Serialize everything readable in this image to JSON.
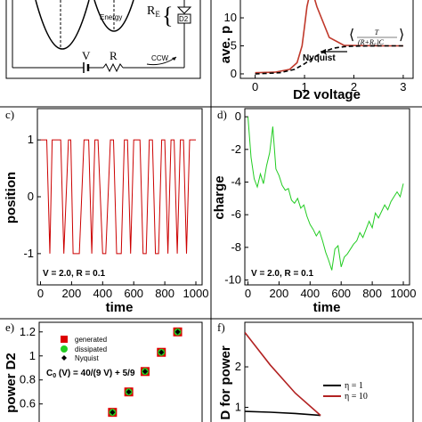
{
  "schematic": {
    "energy_label": "Energy",
    "re_label": "R",
    "re_sub": "E",
    "d2_label": "D2",
    "v_label": "V",
    "r_label": "R",
    "ccw_label": "CCW"
  },
  "chart_data": [
    {
      "panel": "b",
      "type": "line",
      "xlabel": "D2 voltage",
      "ylabel": "ave. p",
      "xlim": [
        -0.3,
        3.2
      ],
      "ylim": [
        -0.8,
        13.5
      ],
      "xticks": [
        "0",
        "1",
        "2",
        "3"
      ],
      "yticks": [
        "0",
        "5",
        "10"
      ],
      "series": [
        {
          "name": "",
          "color": "#c0392b",
          "style": "solid",
          "x": [
            0.0,
            0.4,
            0.7,
            0.85,
            0.95,
            1.0,
            1.05,
            1.1,
            1.15,
            1.25,
            1.5,
            1.8,
            2.5,
            3.0
          ],
          "y": [
            0.2,
            0.3,
            0.8,
            2.0,
            5.0,
            8.5,
            12.0,
            14.0,
            15.0,
            12.0,
            6.5,
            5.1,
            5.0,
            5.0
          ]
        },
        {
          "name": "",
          "color": "#000000",
          "style": "dashed",
          "x": [
            0.0,
            0.5,
            0.8,
            1.0,
            1.2,
            1.4,
            1.6,
            1.8,
            2.0,
            2.5,
            3.0
          ],
          "y": [
            0.0,
            0.2,
            0.8,
            1.8,
            3.0,
            4.0,
            4.6,
            4.85,
            4.95,
            5.0,
            5.0
          ]
        }
      ],
      "annotations": {
        "nyquist": "Nyquist",
        "formula_num": "T",
        "formula_den": "(R+R",
        "formula_den_sub": "E",
        "formula_den_end": ")C"
      }
    },
    {
      "panel": "c",
      "type": "line",
      "panel_label": "c)",
      "xlabel": "time",
      "ylabel": "position",
      "xlim": [
        -20,
        1040
      ],
      "ylim": [
        -1.55,
        1.55
      ],
      "xticks": [
        "0",
        "200",
        "400",
        "600",
        "800",
        "1000"
      ],
      "yticks": [
        "-1",
        "0",
        "1"
      ],
      "annotation": "V = 2.0, R = 0.1",
      "series": [
        {
          "name": "",
          "color": "#cc0000",
          "x": [
            0,
            40,
            60,
            75,
            100,
            130,
            150,
            180,
            195,
            210,
            230,
            250,
            280,
            310,
            330,
            350,
            370,
            400,
            420,
            450,
            470,
            490,
            520,
            540,
            560,
            580,
            600,
            620,
            640,
            660,
            680,
            700,
            720,
            740,
            760,
            780,
            800,
            820,
            840,
            860,
            880,
            900,
            920,
            940,
            960,
            980,
            1000
          ],
          "y": [
            1,
            1,
            -1,
            1,
            1,
            1,
            -1,
            1,
            1,
            -1,
            -1,
            -1,
            1,
            1,
            -1,
            1,
            1,
            -1,
            -1,
            1,
            1,
            -1,
            -1,
            1,
            1,
            -1,
            1,
            1,
            1,
            -1,
            -1,
            1,
            1,
            -1,
            -1,
            1,
            1,
            -1,
            1,
            1,
            -1,
            1,
            1,
            -1,
            1,
            1,
            1
          ]
        }
      ]
    },
    {
      "panel": "d",
      "type": "line",
      "panel_label": "d)",
      "xlabel": "time",
      "ylabel": "charge",
      "xlim": [
        -20,
        1040
      ],
      "ylim": [
        -10.3,
        0.5
      ],
      "xticks": [
        "0",
        "200",
        "400",
        "600",
        "800",
        "1000"
      ],
      "yticks": [
        "-10",
        "-8",
        "-6",
        "-4",
        "-2",
        "0"
      ],
      "annotation": "V = 2.0, R = 0.1",
      "series": [
        {
          "name": "",
          "color": "#22cc22",
          "x": [
            0,
            20,
            40,
            60,
            80,
            100,
            120,
            140,
            160,
            180,
            200,
            220,
            240,
            260,
            280,
            300,
            320,
            340,
            360,
            380,
            400,
            420,
            440,
            460,
            480,
            500,
            520,
            540,
            560,
            580,
            600,
            620,
            640,
            660,
            680,
            700,
            720,
            740,
            760,
            780,
            800,
            820,
            840,
            860,
            880,
            900,
            920,
            940,
            960,
            980,
            1000
          ],
          "y": [
            0.0,
            -2.5,
            -3.8,
            -4.3,
            -3.5,
            -4.1,
            -3.0,
            -2.2,
            -0.6,
            -3.2,
            -3.6,
            -4.2,
            -4.5,
            -4.4,
            -5.1,
            -5.3,
            -5.0,
            -5.6,
            -5.4,
            -6.1,
            -6.6,
            -6.9,
            -7.3,
            -7.0,
            -7.6,
            -8.3,
            -8.8,
            -9.4,
            -8.1,
            -7.9,
            -9.2,
            -8.6,
            -8.4,
            -8.1,
            -7.8,
            -7.6,
            -7.1,
            -7.4,
            -6.9,
            -6.4,
            -6.8,
            -5.9,
            -6.2,
            -5.8,
            -5.4,
            -5.7,
            -5.2,
            -4.9,
            -4.6,
            -4.9,
            -4.1
          ]
        }
      ]
    },
    {
      "panel": "e",
      "type": "scatter",
      "panel_label": "e)",
      "ylabel": "power D2",
      "xlim": [
        0,
        10
      ],
      "ylim": [
        0.42,
        1.28
      ],
      "yticks": [
        "0.6",
        "0.8",
        "1",
        "1.2"
      ],
      "formula": "C (V) = 40/(9 V) + 5/9",
      "formula_sub": "0",
      "legend": [
        "generated",
        "dissipated",
        "Nyquist"
      ],
      "series": [
        {
          "name": "generated",
          "color": "#dd0000",
          "marker": "square",
          "x": [
            4.5,
            5.5,
            6.5,
            7.5,
            8.5
          ],
          "y": [
            0.53,
            0.7,
            0.87,
            1.03,
            1.2
          ]
        },
        {
          "name": "dissipated",
          "color": "#22cc22",
          "marker": "circle",
          "x": [
            4.5,
            5.5,
            6.5,
            7.5,
            8.5
          ],
          "y": [
            0.53,
            0.7,
            0.87,
            1.03,
            1.2
          ]
        },
        {
          "name": "Nyquist",
          "color": "#000000",
          "marker": "diamond",
          "x": [
            4.5,
            5.5,
            6.5,
            7.5,
            8.5
          ],
          "y": [
            0.53,
            0.7,
            0.87,
            1.03,
            1.2
          ]
        }
      ]
    },
    {
      "panel": "f",
      "type": "line",
      "panel_label": "f)",
      "ylabel": "D for power",
      "xlim": [
        0,
        10
      ],
      "ylim": [
        0.55,
        3.1
      ],
      "yticks": [
        "1",
        "2"
      ],
      "series": [
        {
          "name": "η = 1",
          "color": "#000000",
          "x": [
            0,
            1.5,
            3.0,
            4.5
          ],
          "y": [
            0.9,
            0.88,
            0.85,
            0.8
          ]
        },
        {
          "name": "η = 10",
          "color": "#b22222",
          "x": [
            0,
            1.5,
            3.0,
            4.5
          ],
          "y": [
            2.85,
            2.05,
            1.35,
            0.8
          ]
        }
      ]
    }
  ]
}
